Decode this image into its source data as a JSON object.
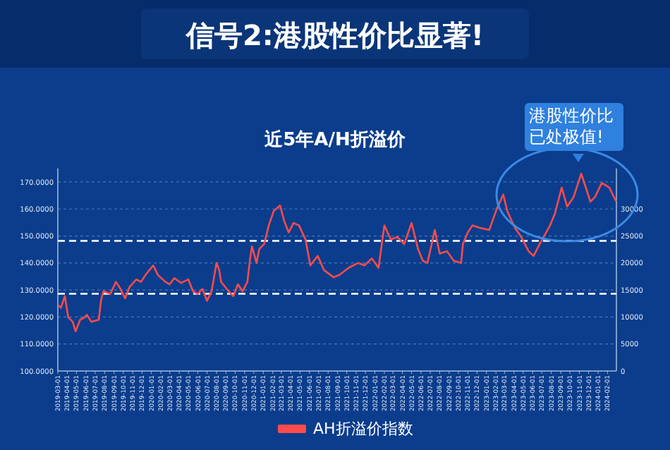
{
  "chart_data": {
    "type": "line",
    "title": "信号2:港股性价比显著!",
    "subtitle": "近5年A/H折溢价",
    "annotations": [
      "港股性价比已处极值!"
    ],
    "xlim": [
      "2019-03-01",
      "2024-03-01"
    ],
    "xticks": [
      "2019-03-01",
      "2019-04-01",
      "2019-05-01",
      "2019-06-01",
      "2019-07-01",
      "2019-08-01",
      "2019-09-01",
      "2019-10-01",
      "2019-11-01",
      "2019-12-01",
      "2020-01-01",
      "2020-02-01",
      "2020-03-01",
      "2020-04-01",
      "2020-05-01",
      "2020-06-01",
      "2020-07-01",
      "2020-08-01",
      "2020-09-01",
      "2020-10-01",
      "2020-11-01",
      "2020-12-01",
      "2021-01-01",
      "2021-02-01",
      "2021-03-01",
      "2021-04-01",
      "2021-05-01",
      "2021-06-01",
      "2021-07-01",
      "2021-08-01",
      "2021-09-01",
      "2021-10-01",
      "2021-11-01",
      "2021-12-01",
      "2022-01-01",
      "2022-02-01",
      "2022-03-01",
      "2022-04-01",
      "2022-05-01",
      "2022-06-01",
      "2022-07-01",
      "2022-08-01",
      "2022-09-01",
      "2022-10-01",
      "2022-11-01",
      "2022-12-01",
      "2023-01-01",
      "2023-02-01",
      "2023-03-01",
      "2023-04-01",
      "2023-05-01",
      "2023-06-01",
      "2023-07-01",
      "2023-08-01",
      "2023-09-01",
      "2023-10-01",
      "2023-11-01",
      "2023-12-01",
      "2024-01-01",
      "2024-02-01"
    ],
    "ylim": [
      100,
      175
    ],
    "yticks": [
      {
        "value": 100,
        "label": "100.0000"
      },
      {
        "value": 110,
        "label": "110.0000"
      },
      {
        "value": 120,
        "label": "120.0000"
      },
      {
        "value": 130,
        "label": "130.0000"
      },
      {
        "value": 140,
        "label": "140.0000"
      },
      {
        "value": 150,
        "label": "150.0000"
      },
      {
        "value": 160,
        "label": "160.0000"
      },
      {
        "value": 170,
        "label": "170.0000"
      }
    ],
    "y2lim": [
      0,
      37500
    ],
    "y2ticks": [
      0,
      5000,
      10000,
      15000,
      20000,
      25000,
      30000
    ],
    "grid": "y",
    "legend": "bottom",
    "marker": "none",
    "line_style": "solid",
    "ref_lines": [
      {
        "axis": "y",
        "value": 148.2,
        "color": "#ffffff",
        "line_style": "dashed"
      },
      {
        "axis": "y",
        "value": 128.6,
        "color": "#ffffff",
        "line_style": "dashed"
      }
    ],
    "series": [
      {
        "name": "AH折溢价指数",
        "color": "#ff4b4b",
        "x": [
          "2019-03-04",
          "2019-03-11",
          "2019-03-24",
          "2019-04-04",
          "2019-04-19",
          "2019-04-28",
          "2019-05-13",
          "2019-05-28",
          "2019-06-04",
          "2019-06-19",
          "2019-07-13",
          "2019-07-20",
          "2019-07-28",
          "2019-08-20",
          "2019-09-07",
          "2019-09-22",
          "2019-10-07",
          "2019-10-22",
          "2019-11-13",
          "2019-11-28",
          "2019-12-13",
          "2020-01-07",
          "2020-01-22",
          "2020-02-16",
          "2020-03-01",
          "2020-03-16",
          "2020-04-07",
          "2020-05-01",
          "2020-05-16",
          "2020-06-01",
          "2020-06-16",
          "2020-07-01",
          "2020-07-16",
          "2020-08-01",
          "2020-08-10",
          "2020-08-16",
          "2020-09-10",
          "2020-09-25",
          "2020-10-10",
          "2020-10-25",
          "2020-11-10",
          "2020-11-19",
          "2020-11-25",
          "2020-12-10",
          "2020-12-19",
          "2021-01-04",
          "2021-01-19",
          "2021-02-04",
          "2021-02-25",
          "2021-03-10",
          "2021-03-25",
          "2021-04-10",
          "2021-04-28",
          "2021-05-19",
          "2021-06-04",
          "2021-06-28",
          "2021-07-19",
          "2021-08-19",
          "2021-09-07",
          "2021-10-07",
          "2021-11-07",
          "2021-11-28",
          "2021-12-22",
          "2022-01-13",
          "2022-02-01",
          "2022-02-22",
          "2022-03-16",
          "2022-04-07",
          "2022-05-01",
          "2022-05-22",
          "2022-06-07",
          "2022-06-22",
          "2022-07-16",
          "2022-08-01",
          "2022-08-25",
          "2022-09-16",
          "2022-10-10",
          "2022-10-16",
          "2022-11-01",
          "2022-11-16",
          "2022-12-10",
          "2023-01-10",
          "2023-02-04",
          "2023-02-25",
          "2023-03-10",
          "2023-04-04",
          "2023-04-25",
          "2023-05-19",
          "2023-06-04",
          "2023-06-28",
          "2023-07-28",
          "2023-08-13",
          "2023-09-04",
          "2023-09-22",
          "2023-10-13",
          "2023-11-07",
          "2023-11-22",
          "2023-12-07",
          "2023-12-22",
          "2024-01-13",
          "2024-02-07",
          "2024-02-28"
        ],
        "values": [
          124.2,
          123.4,
          127.7,
          119.9,
          118.2,
          114.7,
          119.0,
          119.9,
          120.8,
          118.2,
          119.0,
          126.0,
          129.5,
          128.6,
          133.0,
          130.4,
          126.9,
          131.2,
          133.9,
          133.0,
          135.6,
          139.1,
          135.6,
          133.0,
          132.1,
          134.4,
          132.6,
          133.9,
          129.5,
          128.6,
          130.4,
          126.0,
          129.5,
          140.0,
          137.3,
          133.0,
          129.5,
          127.7,
          132.1,
          129.5,
          133.0,
          141.7,
          146.1,
          140.0,
          145.2,
          147.0,
          153.9,
          159.2,
          161.3,
          155.7,
          151.3,
          154.8,
          153.9,
          148.7,
          139.1,
          142.6,
          137.3,
          134.7,
          135.6,
          138.2,
          140.0,
          139.1,
          141.7,
          138.2,
          153.9,
          148.7,
          149.6,
          147.0,
          154.8,
          145.2,
          140.8,
          140.0,
          152.2,
          143.5,
          144.3,
          140.8,
          140.0,
          147.0,
          151.3,
          153.9,
          153.0,
          152.2,
          160.1,
          165.3,
          159.2,
          153.0,
          149.6,
          144.3,
          142.6,
          147.8,
          153.9,
          158.3,
          167.9,
          160.9,
          164.4,
          173.1,
          167.9,
          162.7,
          164.4,
          169.6,
          167.9,
          163.0
        ]
      }
    ]
  }
}
